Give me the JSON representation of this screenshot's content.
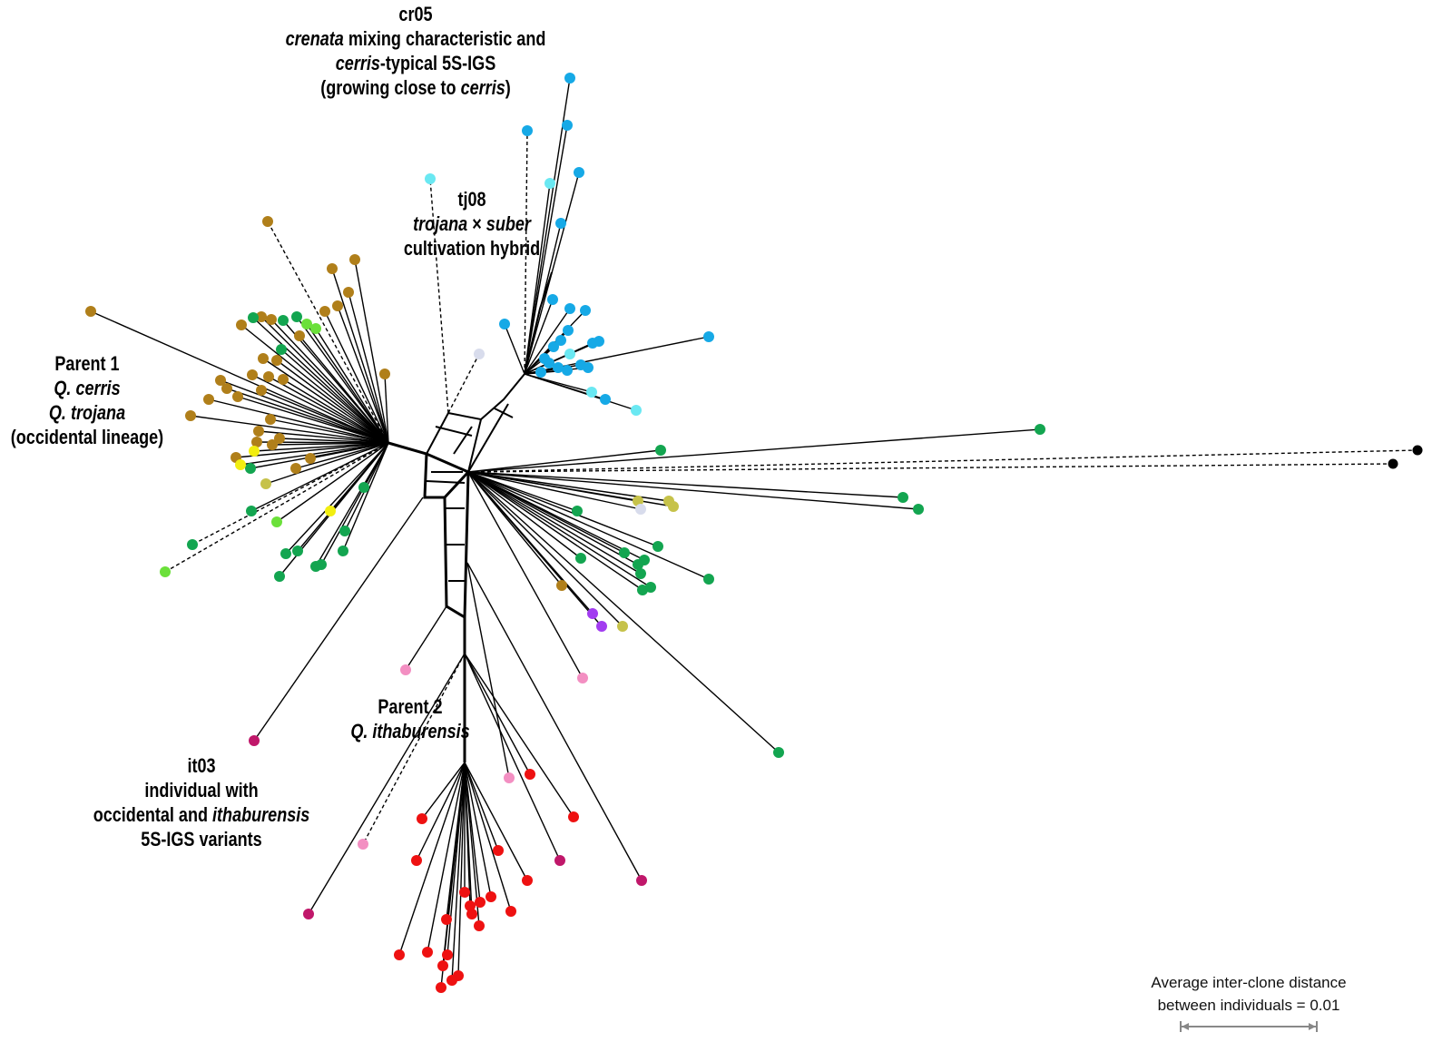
{
  "labels": {
    "cr05": {
      "id": "cr05",
      "line2_italic": "crenata",
      "line2_rest": " mixing characteristic and",
      "line3_italic": "cerris",
      "line3_rest": "-typical 5S-IGS",
      "line4_pre": "(growing close to ",
      "line4_italic": "cerris",
      "line4_post": ")"
    },
    "tj08": {
      "id": "tj08",
      "line2_a": "trojana",
      "line2_x": " × ",
      "line2_b": "suber",
      "line3": "cultivation hybrid"
    },
    "parent1": {
      "title": "Parent 1",
      "species1": "Q. cerris",
      "species2": "Q. trojana",
      "lineage": "(occidental lineage)"
    },
    "parent2": {
      "title": "Parent 2",
      "species": "Q. ithaburensis"
    },
    "it03": {
      "id": "it03",
      "line2": "individual with",
      "line3_pre": "occidental and ",
      "line3_italic": "ithaburensis",
      "line4": "5S-IGS variants"
    }
  },
  "scale_bar": {
    "line1": "Average inter-clone distance",
    "line2": "between individuals = 0.01",
    "color": "#888888"
  },
  "colors": {
    "brown": "#b07f1a",
    "green": "#13a550",
    "lightgreen": "#6be03a",
    "yellow": "#f2ee10",
    "olive": "#c6c24a",
    "blue": "#16a9e6",
    "cyan": "#6ae8f2",
    "lavender": "#d8dcec",
    "purple": "#a23cf0",
    "pink": "#f38fc2",
    "magenta": "#c0176a",
    "red": "#ee1111",
    "black": "#000000"
  }
}
